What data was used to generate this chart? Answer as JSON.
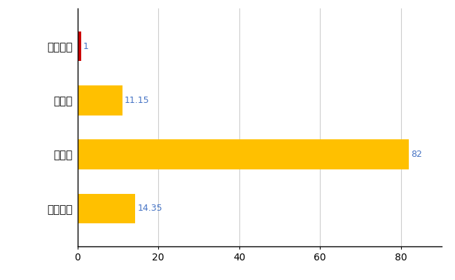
{
  "categories": [
    "西目屋村",
    "県平均",
    "県最大",
    "全国平均"
  ],
  "values": [
    1,
    11.15,
    82,
    14.35
  ],
  "bar_colors": [
    "#cc0000",
    "#ffc000",
    "#ffc000",
    "#ffc000"
  ],
  "value_labels": [
    "1",
    "11.15",
    "82",
    "14.35"
  ],
  "value_label_color": "#4472c4",
  "xlim": [
    0,
    90
  ],
  "xticks": [
    0,
    20,
    40,
    60,
    80
  ],
  "grid_color": "#cccccc",
  "background_color": "#ffffff",
  "bar_height": 0.55,
  "figsize": [
    6.5,
    4.0
  ],
  "dpi": 100,
  "label_fontsize": 11,
  "tick_fontsize": 10,
  "value_fontsize": 9
}
